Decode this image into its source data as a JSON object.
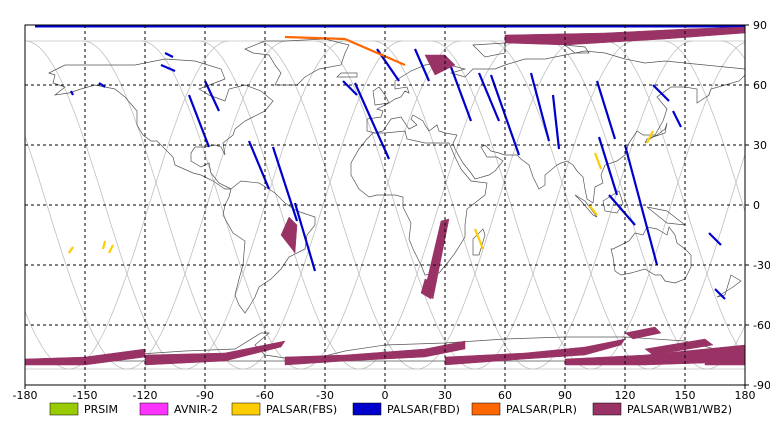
{
  "map": {
    "type": "world-coverage-map",
    "projection": "equirectangular",
    "x_axis": {
      "range": [
        -180,
        180
      ],
      "ticks": [
        -180,
        -150,
        -120,
        -90,
        -60,
        -30,
        0,
        30,
        60,
        90,
        120,
        150,
        180
      ],
      "tick_labels": [
        "-180",
        "-150",
        "-120",
        "-90",
        "-60",
        "-30",
        "0",
        "30",
        "60",
        "90",
        "120",
        "150",
        "180"
      ]
    },
    "y_axis": {
      "range": [
        -90,
        90
      ],
      "ticks": [
        90,
        60,
        30,
        0,
        -30,
        -60,
        -90
      ],
      "tick_labels": [
        "90",
        "60",
        "30",
        "0",
        "-30",
        "-60",
        "-90"
      ],
      "side": "right"
    },
    "grid": true,
    "grid_style": "dashed"
  },
  "legend": {
    "placement": "bottom",
    "items": [
      {
        "label": "PRSIM",
        "color": "#99cc00"
      },
      {
        "label": "AVNIR-2",
        "color": "#ff33ff"
      },
      {
        "label": "PALSAR(FBS)",
        "color": "#ffcc00"
      },
      {
        "label": "PALSAR(FBD)",
        "color": "#0000cc"
      },
      {
        "label": "PALSAR(PLR)",
        "color": "#ff6600"
      },
      {
        "label": "PALSAR(WB1/WB2)",
        "color": "#993366"
      }
    ]
  },
  "colors": {
    "coastline": "#555555",
    "orbit": "#c0c0c0",
    "grid": "#000000"
  },
  "chart_data": {
    "type": "scatter",
    "x_range": [
      -180,
      180
    ],
    "y_range": [
      -90,
      90
    ],
    "series": [
      {
        "name": "PALSAR(FBD)",
        "segments": [
          [
            [
              -157,
              57
            ],
            [
              -156,
              55
            ]
          ],
          [
            [
              -143,
              61
            ],
            [
              -140,
              59
            ]
          ],
          [
            [
              -112,
              70
            ],
            [
              -105,
              67
            ]
          ],
          [
            [
              -110,
              76
            ],
            [
              -106,
              74
            ]
          ],
          [
            [
              -98,
              55
            ],
            [
              -88,
              29
            ]
          ],
          [
            [
              -90,
              62
            ],
            [
              -83,
              47
            ]
          ],
          [
            [
              -68,
              32
            ],
            [
              -58,
              8
            ]
          ],
          [
            [
              -56,
              29
            ],
            [
              -44,
              -8
            ]
          ],
          [
            [
              -45,
              1
            ],
            [
              -35,
              -33
            ]
          ],
          [
            [
              -21,
              62
            ],
            [
              -14,
              55
            ]
          ],
          [
            [
              -15,
              61
            ],
            [
              2,
              23
            ]
          ],
          [
            [
              -4,
              78
            ],
            [
              7,
              62
            ]
          ],
          [
            [
              15,
              78
            ],
            [
              22,
              62
            ]
          ],
          [
            [
              33,
              69
            ],
            [
              43,
              42
            ]
          ],
          [
            [
              47,
              66
            ],
            [
              57,
              42
            ]
          ],
          [
            [
              53,
              65
            ],
            [
              67,
              25
            ]
          ],
          [
            [
              73,
              66
            ],
            [
              82,
              32
            ]
          ],
          [
            [
              84,
              55
            ],
            [
              87,
              28
            ]
          ],
          [
            [
              106,
              62
            ],
            [
              115,
              33
            ]
          ],
          [
            [
              107,
              34
            ],
            [
              116,
              5
            ]
          ],
          [
            [
              112,
              5
            ],
            [
              125,
              -10
            ]
          ],
          [
            [
              120,
              30
            ],
            [
              136,
              -30
            ]
          ],
          [
            [
              134,
              60
            ],
            [
              142,
              52
            ]
          ],
          [
            [
              144,
              47
            ],
            [
              148,
              39
            ]
          ],
          [
            [
              162,
              -14
            ],
            [
              168,
              -20
            ]
          ],
          [
            [
              165,
              -42
            ],
            [
              170,
              -47
            ]
          ],
          [
            [
              -175,
              90
            ],
            [
              180,
              90
            ]
          ]
        ]
      },
      {
        "name": "PALSAR(FBS)",
        "segments": [
          [
            [
              -156,
              -21
            ],
            [
              -158,
              -24
            ]
          ],
          [
            [
              -140,
              -18
            ],
            [
              -141,
              -22
            ]
          ],
          [
            [
              -136,
              -20
            ],
            [
              -138,
              -24
            ]
          ],
          [
            [
              105,
              26
            ],
            [
              108,
              18
            ]
          ],
          [
            [
              102,
              0
            ],
            [
              106,
              -5
            ]
          ],
          [
            [
              131,
              31
            ],
            [
              134,
              37
            ]
          ],
          [
            [
              45,
              -12
            ],
            [
              49,
              -22
            ]
          ]
        ]
      },
      {
        "name": "PALSAR(PLR)",
        "segments": [
          [
            [
              -50,
              84
            ],
            [
              -20,
              83
            ]
          ],
          [
            [
              -20,
              83
            ],
            [
              10,
              70
            ]
          ]
        ]
      },
      {
        "name": "PALSAR(WB1/WB2)",
        "polygons": [
          [
            [
              -52,
              -15
            ],
            [
              -48,
              -6
            ],
            [
              -44,
              -10
            ],
            [
              -45,
              -24
            ]
          ],
          [
            [
              32,
              -7
            ],
            [
              28,
              -8
            ],
            [
              20,
              -42
            ],
            [
              24,
              -47
            ]
          ],
          [
            [
              20,
              -37
            ],
            [
              25,
              -39
            ],
            [
              23,
              -47
            ],
            [
              18,
              -44
            ]
          ],
          [
            [
              20,
              75
            ],
            [
              30,
              75
            ],
            [
              35,
              70
            ],
            [
              25,
              65
            ]
          ],
          [
            [
              60,
              85
            ],
            [
              110,
              86
            ],
            [
              150,
              88
            ],
            [
              180,
              89
            ],
            [
              180,
              86
            ],
            [
              140,
              83
            ],
            [
              90,
              80
            ],
            [
              60,
              81
            ]
          ],
          [
            [
              -180,
              -77
            ],
            [
              -150,
              -76
            ],
            [
              -120,
              -72
            ],
            [
              -120,
              -76
            ],
            [
              -150,
              -80
            ],
            [
              -180,
              -80
            ]
          ],
          [
            [
              -120,
              -75
            ],
            [
              -80,
              -74
            ],
            [
              -50,
              -68
            ],
            [
              -52,
              -71
            ],
            [
              -80,
              -78
            ],
            [
              -120,
              -80
            ]
          ],
          [
            [
              -50,
              -76
            ],
            [
              -20,
              -75
            ],
            [
              20,
              -72
            ],
            [
              40,
              -68
            ],
            [
              40,
              -72
            ],
            [
              20,
              -76
            ],
            [
              -20,
              -78
            ],
            [
              -50,
              -80
            ]
          ],
          [
            [
              30,
              -76
            ],
            [
              70,
              -74
            ],
            [
              100,
              -71
            ],
            [
              120,
              -67
            ],
            [
              118,
              -70
            ],
            [
              100,
              -75
            ],
            [
              70,
              -77
            ],
            [
              30,
              -80
            ]
          ],
          [
            [
              90,
              -77
            ],
            [
              130,
              -75
            ],
            [
              160,
              -72
            ],
            [
              180,
              -70
            ],
            [
              180,
              -75
            ],
            [
              160,
              -79
            ],
            [
              130,
              -80
            ],
            [
              90,
              -80
            ]
          ],
          [
            [
              120,
              -64
            ],
            [
              135,
              -61
            ],
            [
              138,
              -64
            ],
            [
              124,
              -67
            ]
          ],
          [
            [
              130,
              -72
            ],
            [
              160,
              -67
            ],
            [
              164,
              -70
            ],
            [
              134,
              -75
            ]
          ],
          [
            [
              160,
              -77
            ],
            [
              180,
              -75
            ],
            [
              180,
              -80
            ],
            [
              160,
              -80
            ]
          ]
        ]
      },
      {
        "name": "PRSIM",
        "segments": []
      },
      {
        "name": "AVNIR-2",
        "segments": []
      }
    ]
  }
}
